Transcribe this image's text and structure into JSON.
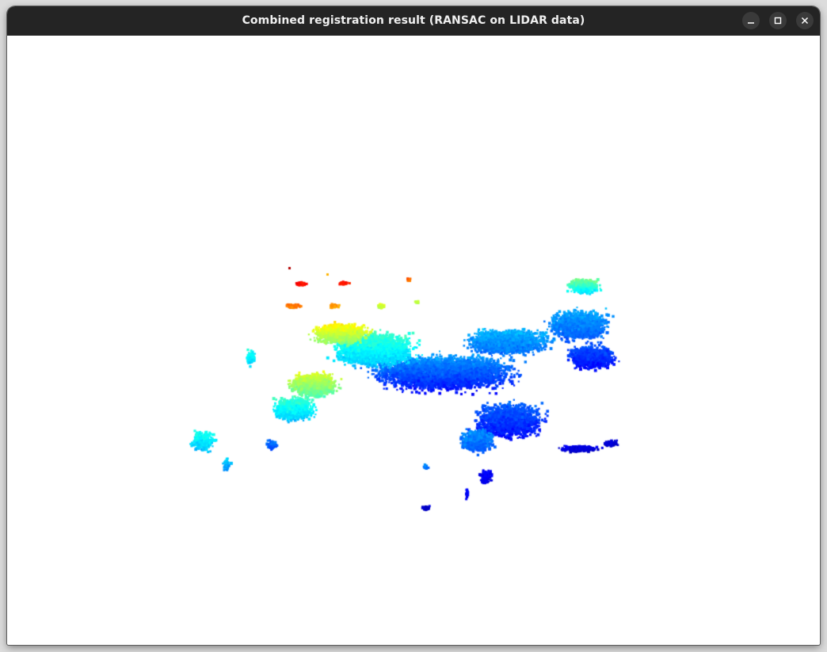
{
  "window": {
    "title": "Combined registration result (RANSAC on LIDAR data)",
    "controls": {
      "minimize_icon": "minimize-icon",
      "maximize_icon": "maximize-icon",
      "close_icon": "close-icon"
    }
  },
  "viewport": {
    "background": "#ffffff",
    "colormap": "jet",
    "colormap_stops": [
      "#00008f",
      "#0000ff",
      "#0080ff",
      "#00ffff",
      "#80ff80",
      "#ffff00",
      "#ff8000",
      "#ff0000",
      "#800000"
    ]
  }
}
